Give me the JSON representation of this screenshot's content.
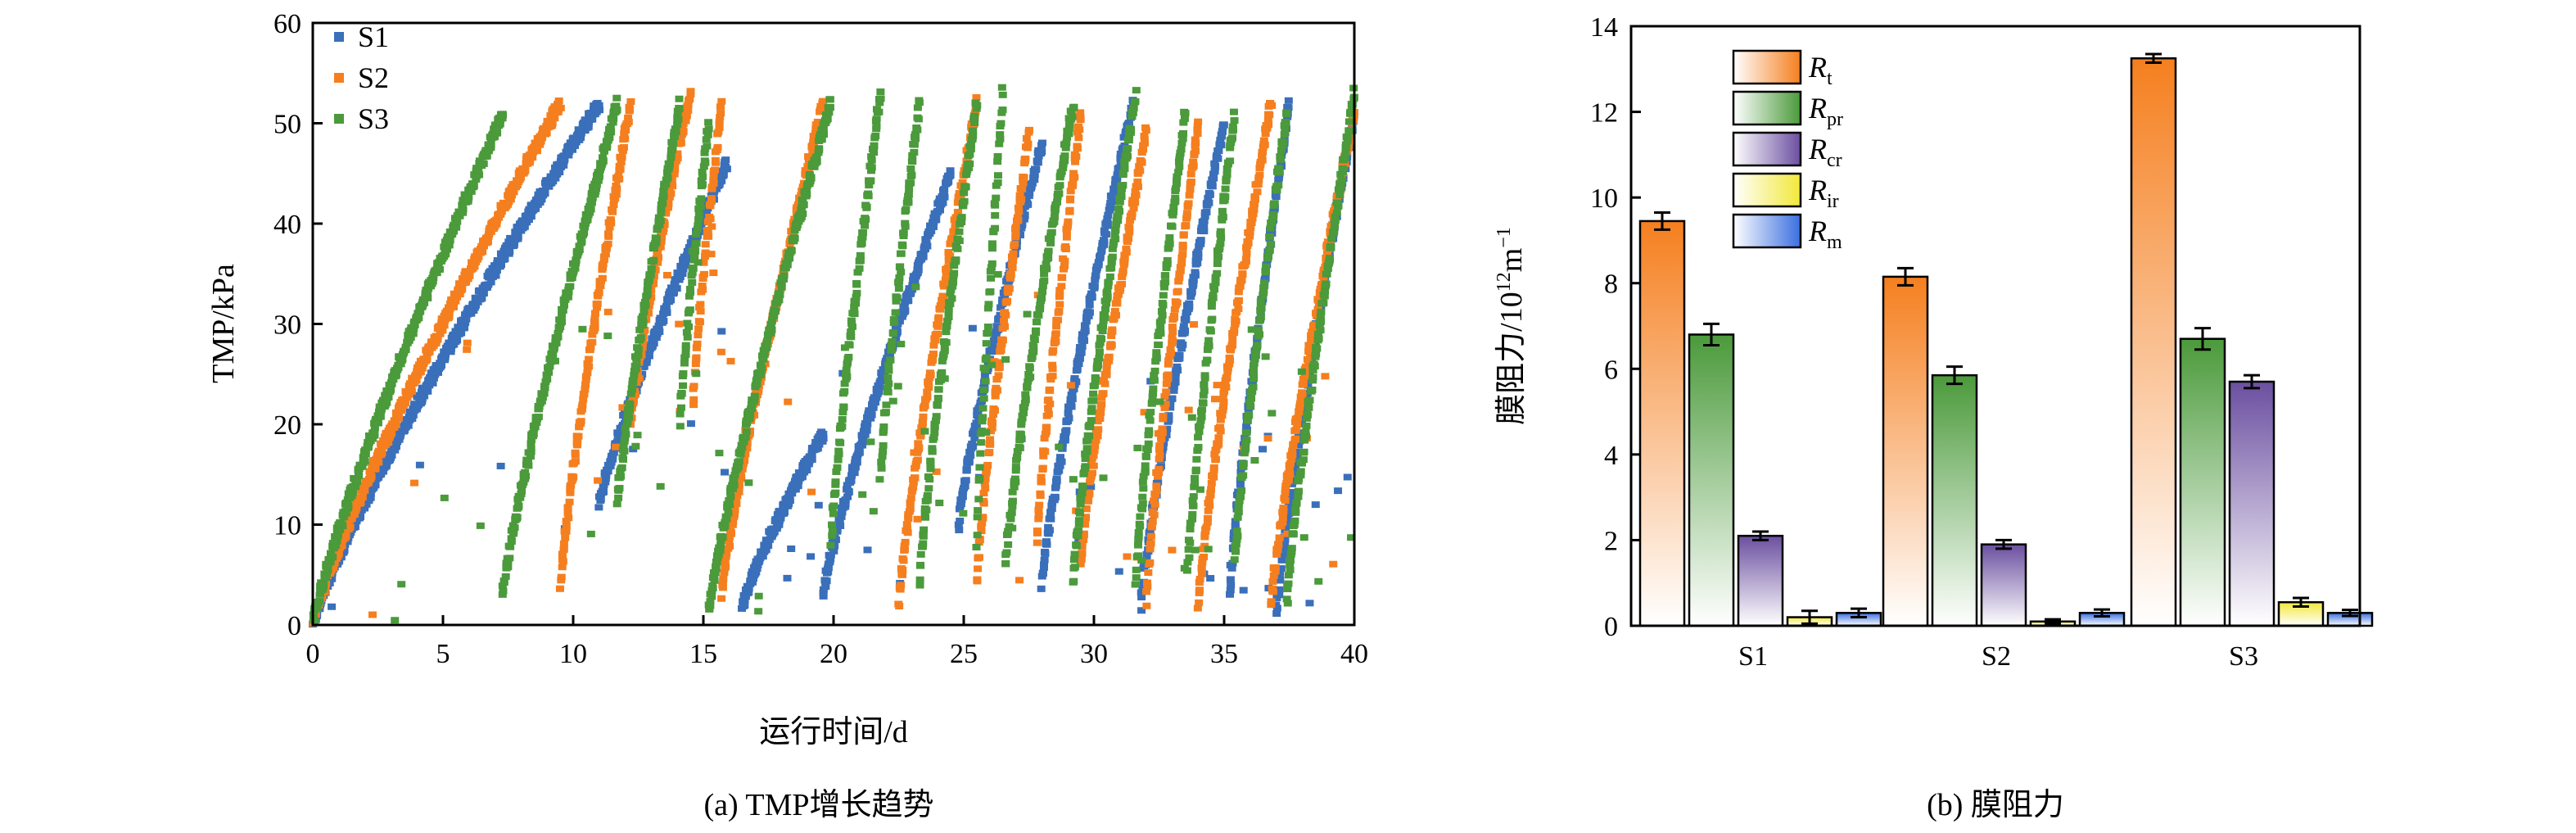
{
  "colors": {
    "S1": "#3a6fba",
    "S2": "#f57f1f",
    "S3": "#4b9a3b"
  },
  "chart_data": [
    {
      "type": "scatter",
      "caption": "(a) TMP增长趋势",
      "xlabel": "运行时间/d",
      "ylabel": "TMP/kPa",
      "xlim": [
        0,
        40
      ],
      "ylim": [
        0,
        60
      ],
      "xticks": [
        0,
        5,
        10,
        15,
        20,
        25,
        30,
        35,
        40
      ],
      "yticks": [
        0,
        10,
        20,
        30,
        40,
        50,
        60
      ],
      "legend_position": "top-left",
      "series": [
        {
          "name": "S1",
          "color": "#3a6fba",
          "cycles": [
            [
              0,
              11,
              0,
              52
            ],
            [
              11,
              15.9,
              12,
              46
            ],
            [
              16.5,
              19.6,
              2,
              19
            ],
            [
              19.6,
              24.5,
              3,
              45
            ],
            [
              24.8,
              28,
              10,
              48
            ],
            [
              28,
              31.5,
              4,
              52
            ],
            [
              31.8,
              35,
              2,
              50
            ],
            [
              35.2,
              37.5,
              3,
              52
            ],
            [
              37,
              40,
              1,
              51
            ]
          ]
        },
        {
          "name": "S2",
          "color": "#f57f1f",
          "cycles": [
            [
              0,
              9.5,
              0,
              52
            ],
            [
              9.5,
              12.2,
              4,
              52
            ],
            [
              12.2,
              14.5,
              20,
              53
            ],
            [
              14.6,
              15.7,
              22,
              52
            ],
            [
              15.7,
              19.6,
              3,
              52
            ],
            [
              22.5,
              25.5,
              2,
              52
            ],
            [
              25.5,
              27.5,
              4,
              49
            ],
            [
              27.8,
              29.5,
              8,
              51
            ],
            [
              29.5,
              32,
              6,
              49
            ],
            [
              32,
              34,
              2,
              50
            ],
            [
              34,
              36.8,
              2,
              52
            ],
            [
              36.8,
              40,
              2,
              51
            ]
          ]
        },
        {
          "name": "S3",
          "color": "#4b9a3b",
          "cycles": [
            [
              0,
              7.3,
              0,
              51
            ],
            [
              7.3,
              11.7,
              3,
              52
            ],
            [
              11.7,
              14.1,
              12,
              52
            ],
            [
              14.1,
              15.2,
              20,
              50
            ],
            [
              15.2,
              19.9,
              1,
              52
            ],
            [
              19.9,
              21.8,
              8,
              53
            ],
            [
              21.8,
              23.3,
              15,
              52
            ],
            [
              23.3,
              25.5,
              4,
              52
            ],
            [
              25.5,
              26.5,
              8,
              53
            ],
            [
              26.6,
              29.2,
              6,
              52
            ],
            [
              29.2,
              31.6,
              4,
              53
            ],
            [
              31.6,
              33.5,
              4,
              51
            ],
            [
              33.6,
              35.4,
              5,
              51
            ],
            [
              35.4,
              37.4,
              6,
              51
            ],
            [
              37.4,
              40,
              2,
              53
            ]
          ]
        }
      ]
    },
    {
      "type": "bar",
      "caption": "(b) 膜阻力",
      "ylabel_main": "膜阻力/10",
      "ylabel_sup": "12",
      "ylabel_tail": "m",
      "ylabel_sup2": "−1",
      "ylim": [
        0,
        14
      ],
      "yticks": [
        0,
        2,
        4,
        6,
        8,
        10,
        12,
        14
      ],
      "categories": [
        "S1",
        "S2",
        "S3"
      ],
      "legend_position": "top-left",
      "series": [
        {
          "name": "R",
          "sub": "t",
          "color": "#f57f1f",
          "values": [
            9.45,
            8.15,
            13.25
          ],
          "errors": [
            0.2,
            0.2,
            0.1
          ]
        },
        {
          "name": "R",
          "sub": "pr",
          "color": "#4b9a3b",
          "values": [
            6.8,
            5.85,
            6.7
          ],
          "errors": [
            0.25,
            0.2,
            0.25
          ]
        },
        {
          "name": "R",
          "sub": "cr",
          "color": "#6b4fa0",
          "values": [
            2.1,
            1.9,
            5.7
          ],
          "errors": [
            0.1,
            0.1,
            0.15
          ]
        },
        {
          "name": "R",
          "sub": "ir",
          "color": "#f2e83a",
          "values": [
            0.2,
            0.1,
            0.55
          ],
          "errors": [
            0.15,
            0.05,
            0.1
          ]
        },
        {
          "name": "R",
          "sub": "m",
          "color": "#3a6fe0",
          "values": [
            0.3,
            0.3,
            0.3
          ],
          "errors": [
            0.1,
            0.08,
            0.07
          ]
        }
      ]
    }
  ]
}
